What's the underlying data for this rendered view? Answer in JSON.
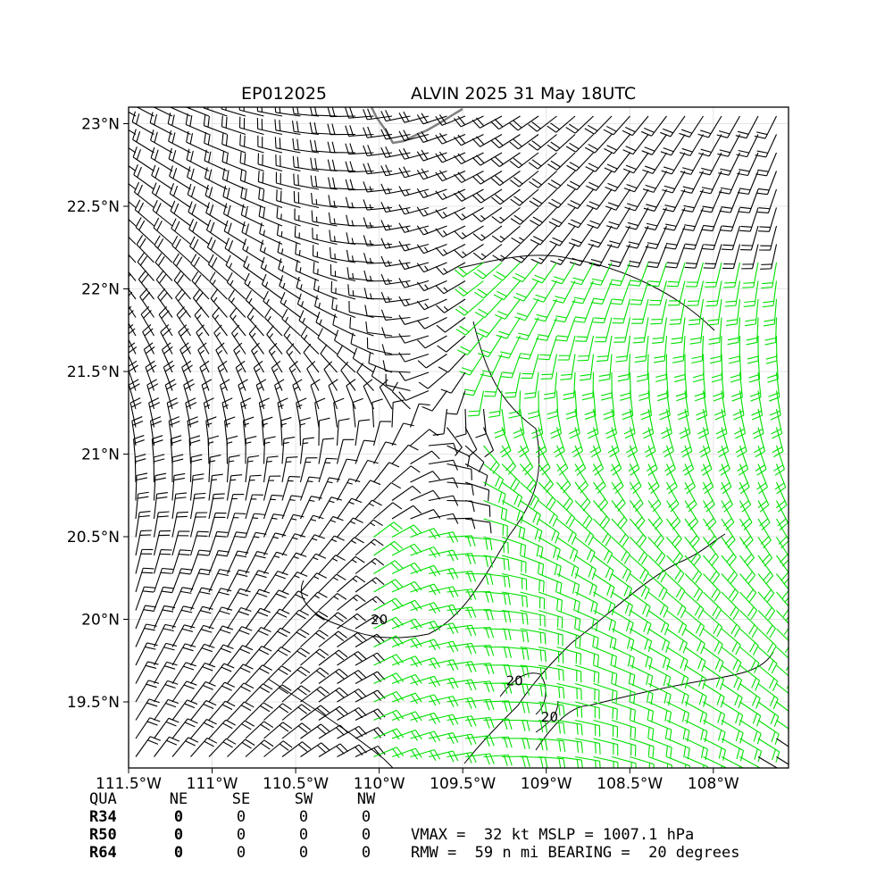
{
  "chart_data": {
    "type": "wind-barb map",
    "storm_id": "EP012025",
    "title": "ALVIN 2025 31 May 18UTC",
    "xlim": [
      -111.5,
      -107.55
    ],
    "ylim": [
      19.1,
      23.1
    ],
    "x_ticks": [
      {
        "value": -111.5,
        "label": "111.5°W"
      },
      {
        "value": -111.0,
        "label": "111°W"
      },
      {
        "value": -110.5,
        "label": "110.5°W"
      },
      {
        "value": -110.0,
        "label": "110°W"
      },
      {
        "value": -109.5,
        "label": "109.5°W"
      },
      {
        "value": -109.0,
        "label": "109°W"
      },
      {
        "value": -108.5,
        "label": "108.5°W"
      },
      {
        "value": -108.0,
        "label": "108°W"
      }
    ],
    "y_ticks": [
      {
        "value": 23.0,
        "label": "23°N"
      },
      {
        "value": 22.5,
        "label": "22.5°N"
      },
      {
        "value": 22.0,
        "label": "22°N"
      },
      {
        "value": 21.5,
        "label": "21.5°N"
      },
      {
        "value": 21.0,
        "label": "21°N"
      },
      {
        "value": 20.5,
        "label": "20.5°N"
      },
      {
        "value": 20.0,
        "label": "20°N"
      },
      {
        "value": 19.5,
        "label": "19.5°N"
      }
    ],
    "grid": true,
    "center": {
      "lon": -109.73,
      "lat": 21.22
    },
    "barb_color_default": "#000000",
    "barb_color_high": "#00e000",
    "coastline_color": "#808080",
    "contour_labels": [
      {
        "text": "20",
        "lon": -110.0,
        "lat": 19.97
      },
      {
        "text": "20",
        "lon": -109.19,
        "lat": 19.6
      },
      {
        "text": "20",
        "lon": -108.98,
        "lat": 19.38
      }
    ],
    "radii_table": {
      "header": [
        "QUA",
        "NE",
        "SE",
        "SW",
        "NW"
      ],
      "rows": [
        {
          "label": "R34",
          "values": [
            "0",
            "0",
            "0",
            "0"
          ]
        },
        {
          "label": "R50",
          "values": [
            "0",
            "0",
            "0",
            "0"
          ]
        },
        {
          "label": "R64",
          "values": [
            "0",
            "0",
            "0",
            "0"
          ]
        }
      ]
    },
    "stats": [
      "VMAX =  32 kt MSLP = 1007.1 hPa",
      "RMW =  59 n mi BEARING =  20 degrees"
    ]
  }
}
